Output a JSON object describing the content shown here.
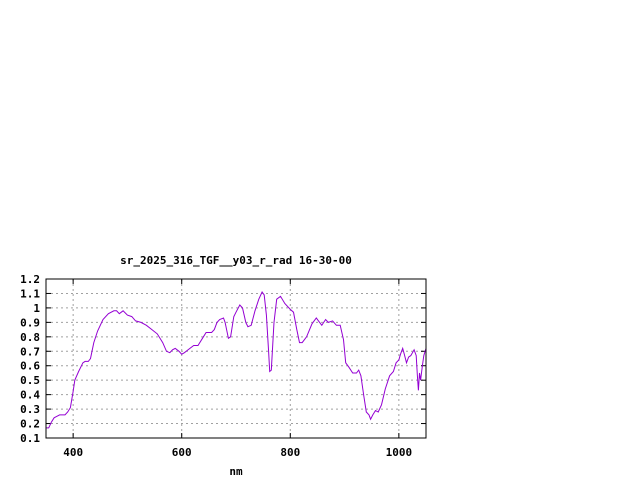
{
  "chart_data": {
    "type": "line",
    "title": "sr_2025_316_TGF__y03_r_rad 16-30-00",
    "xlabel": "nm",
    "ylabel": "",
    "xlim": [
      350,
      1050
    ],
    "ylim": [
      0.1,
      1.2
    ],
    "xticks": [
      400,
      600,
      800,
      1000
    ],
    "yticks": [
      0.1,
      0.2,
      0.3,
      0.4,
      0.5,
      0.6,
      0.7,
      0.8,
      0.9,
      1,
      1.1,
      1.2
    ],
    "ytick_labels": [
      "0.1",
      "0.2",
      "0.3",
      "0.4",
      "0.5",
      "0.6",
      "0.7",
      "0.8",
      "0.9",
      "1",
      "1.1",
      "1.2"
    ],
    "xtick_labels": [
      "400",
      "600",
      "800",
      "1000"
    ],
    "grid": true,
    "legend": "none",
    "series": [
      {
        "color": "#9400d3",
        "x": [
          350,
          355,
          360,
          365,
          370,
          375,
          385,
          390,
          395,
          400,
          403,
          410,
          418,
          422,
          428,
          432,
          438,
          445,
          455,
          465,
          475,
          480,
          485,
          492,
          500,
          508,
          515,
          525,
          535,
          545,
          555,
          565,
          572,
          578,
          583,
          588,
          595,
          600,
          605,
          615,
          622,
          630,
          640,
          645,
          655,
          660,
          665,
          670,
          677,
          680,
          686,
          690,
          696,
          700,
          707,
          712,
          718,
          722,
          728,
          735,
          742,
          748,
          752,
          756,
          760,
          762,
          765,
          770,
          775,
          782,
          790,
          800,
          806,
          812,
          817,
          822,
          830,
          840,
          848,
          852,
          858,
          865,
          870,
          878,
          885,
          892,
          898,
          902,
          908,
          915,
          922,
          926,
          930,
          935,
          940,
          945,
          948,
          952,
          957,
          962,
          968,
          975,
          983,
          990,
          995,
          1000,
          1003,
          1007,
          1010,
          1014,
          1018,
          1022,
          1028,
          1032,
          1034,
          1036,
          1038,
          1040,
          1043,
          1046,
          1050
        ],
        "y": [
          0.17,
          0.17,
          0.21,
          0.24,
          0.25,
          0.26,
          0.26,
          0.28,
          0.31,
          0.42,
          0.5,
          0.56,
          0.62,
          0.63,
          0.63,
          0.65,
          0.76,
          0.84,
          0.92,
          0.96,
          0.98,
          0.98,
          0.96,
          0.98,
          0.95,
          0.94,
          0.91,
          0.9,
          0.88,
          0.85,
          0.82,
          0.76,
          0.7,
          0.69,
          0.71,
          0.72,
          0.7,
          0.68,
          0.69,
          0.72,
          0.74,
          0.74,
          0.8,
          0.83,
          0.83,
          0.85,
          0.9,
          0.92,
          0.93,
          0.9,
          0.79,
          0.8,
          0.94,
          0.97,
          1.02,
          1.0,
          0.9,
          0.87,
          0.88,
          0.98,
          1.06,
          1.11,
          1.09,
          0.95,
          0.7,
          0.56,
          0.57,
          0.9,
          1.06,
          1.08,
          1.03,
          0.99,
          0.97,
          0.85,
          0.76,
          0.76,
          0.8,
          0.89,
          0.93,
          0.91,
          0.88,
          0.92,
          0.9,
          0.91,
          0.88,
          0.88,
          0.78,
          0.62,
          0.59,
          0.55,
          0.55,
          0.57,
          0.53,
          0.4,
          0.28,
          0.26,
          0.23,
          0.26,
          0.29,
          0.28,
          0.33,
          0.44,
          0.53,
          0.56,
          0.62,
          0.64,
          0.68,
          0.72,
          0.68,
          0.62,
          0.66,
          0.67,
          0.71,
          0.67,
          0.54,
          0.43,
          0.55,
          0.5,
          0.59,
          0.67,
          0.72
        ]
      }
    ]
  }
}
